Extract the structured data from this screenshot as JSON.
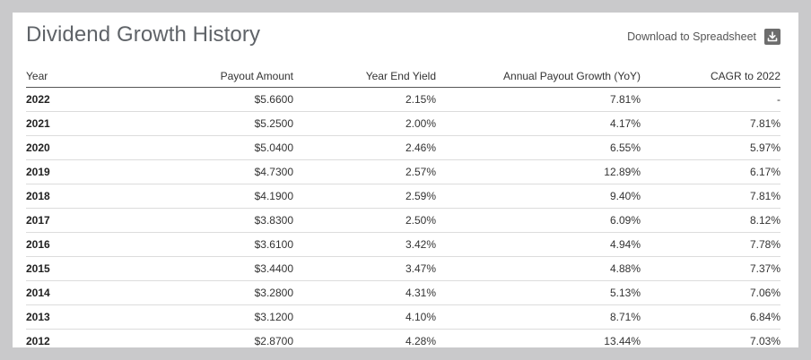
{
  "title": "Dividend Growth History",
  "download": {
    "label": "Download to Spreadsheet",
    "icon": "download-icon"
  },
  "table": {
    "headers": {
      "year": "Year",
      "payout": "Payout Amount",
      "yield": "Year End Yield",
      "growth": "Annual Payout Growth (YoY)",
      "cagr": "CAGR to 2022"
    },
    "rows": [
      {
        "year": "2022",
        "payout": "$5.6600",
        "yield": "2.15%",
        "growth": "7.81%",
        "cagr": "-"
      },
      {
        "year": "2021",
        "payout": "$5.2500",
        "yield": "2.00%",
        "growth": "4.17%",
        "cagr": "7.81%"
      },
      {
        "year": "2020",
        "payout": "$5.0400",
        "yield": "2.46%",
        "growth": "6.55%",
        "cagr": "5.97%"
      },
      {
        "year": "2019",
        "payout": "$4.7300",
        "yield": "2.57%",
        "growth": "12.89%",
        "cagr": "6.17%"
      },
      {
        "year": "2018",
        "payout": "$4.1900",
        "yield": "2.59%",
        "growth": "9.40%",
        "cagr": "7.81%"
      },
      {
        "year": "2017",
        "payout": "$3.8300",
        "yield": "2.50%",
        "growth": "6.09%",
        "cagr": "8.12%"
      },
      {
        "year": "2016",
        "payout": "$3.6100",
        "yield": "3.42%",
        "growth": "4.94%",
        "cagr": "7.78%"
      },
      {
        "year": "2015",
        "payout": "$3.4400",
        "yield": "3.47%",
        "growth": "4.88%",
        "cagr": "7.37%"
      },
      {
        "year": "2014",
        "payout": "$3.2800",
        "yield": "4.31%",
        "growth": "5.13%",
        "cagr": "7.06%"
      },
      {
        "year": "2013",
        "payout": "$3.1200",
        "yield": "4.10%",
        "growth": "8.71%",
        "cagr": "6.84%"
      },
      {
        "year": "2012",
        "payout": "$2.8700",
        "yield": "4.28%",
        "growth": "13.44%",
        "cagr": "7.03%"
      }
    ]
  }
}
